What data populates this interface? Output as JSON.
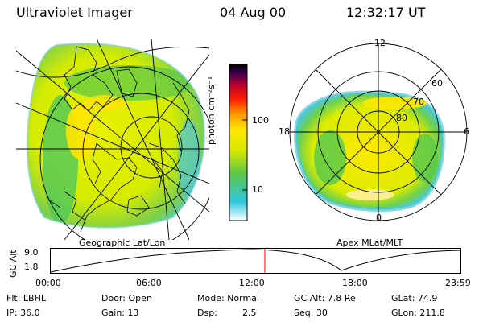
{
  "header": {
    "instrument": "Ultraviolet Imager",
    "date": "04 Aug 00",
    "time": "12:32:17 UT"
  },
  "geo_panel": {
    "label": "Geographic Lat/Lon"
  },
  "apex_panel": {
    "label": "Apex MLat/MLT",
    "mlt_labels": [
      "12",
      "18",
      "6",
      "0"
    ],
    "lat_labels": [
      "60",
      "70",
      "80"
    ]
  },
  "colorbar": {
    "unit_label": "photon cm⁻²s⁻¹",
    "tick_labels": [
      "100",
      "10"
    ]
  },
  "orbit": {
    "y_axis_label": "GC Alt",
    "y_ticks": [
      "9.0",
      "1.8"
    ],
    "x_ticks": [
      "00:00",
      "06:00",
      "12:00",
      "18:00",
      "23:59"
    ],
    "current_time_hours": 12.54
  },
  "info": {
    "flt": "Flt: LBHL",
    "ip": "IP: 36.0",
    "door": "Door: Open",
    "gain": "Gain: 13",
    "mode": "Mode: Normal",
    "dsp_label": "Dsp:",
    "dsp_value": "2.5",
    "gc_alt": "GC Alt: 7.8 Re",
    "seq": "Seq: 30",
    "glat": "GLat: 74.9",
    "glon": "GLon: 211.8"
  },
  "colors": {
    "orbit_marker": "#ff0000",
    "colorbar_stops": [
      "#ffffff",
      "#2ec8e0",
      "#5ac84a",
      "#d8e800",
      "#ffe800",
      "#ff9a00",
      "#ff1a00",
      "#b8002a",
      "#400050",
      "#000000"
    ]
  }
}
